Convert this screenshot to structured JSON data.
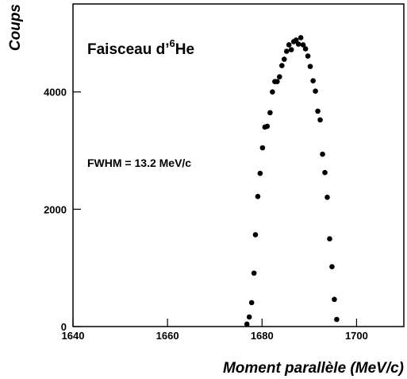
{
  "chart_data": {
    "type": "scatter",
    "ylabel": "Coups",
    "xlabel": "Moment parallèle (MeV/c)",
    "annotation_parts": [
      "Faisceau d’",
      "6",
      "He"
    ],
    "annotation2": "FWHM = 13.2 MeV/c",
    "color": "#000000",
    "xlim": [
      1640,
      1710
    ],
    "xticks": [
      1640,
      1660,
      1680,
      1700
    ],
    "ylim": [
      0,
      5500
    ],
    "yticks": [
      0,
      2000,
      4000
    ],
    "x": [
      1676.8,
      1677.3,
      1677.8,
      1678.3,
      1678.6,
      1679.1,
      1679.6,
      1680.1,
      1680.6,
      1681.1,
      1681.7,
      1682.2,
      1682.7,
      1683.2,
      1683.7,
      1684.2,
      1684.7,
      1685.2,
      1685.7,
      1686.2,
      1686.7,
      1687.2,
      1687.7,
      1688.2,
      1688.7,
      1689.2,
      1689.7,
      1690.2,
      1690.8,
      1691.3,
      1691.8,
      1692.3,
      1692.8,
      1693.3,
      1693.8,
      1694.3,
      1694.8,
      1695.3,
      1695.8
    ],
    "values": [
      41,
      163,
      408,
      911,
      1565,
      2218,
      2612,
      3048,
      3401,
      3415,
      3646,
      4000,
      4177,
      4177,
      4258,
      4449,
      4558,
      4694,
      4803,
      4721,
      4857,
      4884,
      4816,
      4925,
      4803,
      4735,
      4612,
      4435,
      4190,
      4014,
      3673,
      3524,
      2939,
      2626,
      2204,
      1497,
      1020,
      463,
      122
    ]
  }
}
